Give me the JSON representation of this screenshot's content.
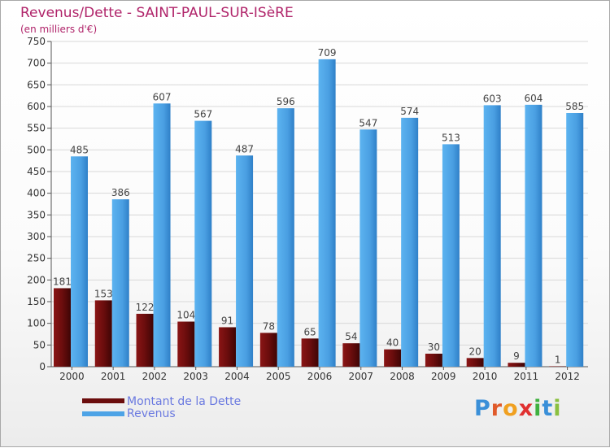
{
  "header": {
    "title": "Revenus/Dette - SAINT-PAUL-SUR-ISèRE",
    "subtitle": "(en milliers d'€)"
  },
  "colors": {
    "debt": "#6b0d0d",
    "revenue": "#4da3e6",
    "title": "#b0246a",
    "legend_text": "#6a79e0",
    "grid": "#d8d8d8",
    "axis": "#555555"
  },
  "chart_data": {
    "type": "bar",
    "title": "Revenus/Dette - SAINT-PAUL-SUR-ISèRE",
    "ylabel": "(en milliers d'€)",
    "xlabel": "",
    "categories": [
      "2000",
      "2001",
      "2002",
      "2003",
      "2004",
      "2005",
      "2006",
      "2007",
      "2008",
      "2009",
      "2010",
      "2011",
      "2012"
    ],
    "series": [
      {
        "name": "Montant de la Dette",
        "color": "#6b0d0d",
        "values": [
          181,
          153,
          122,
          104,
          91,
          78,
          65,
          54,
          40,
          30,
          20,
          9,
          1
        ]
      },
      {
        "name": "Revenus",
        "color": "#4da3e6",
        "values": [
          485,
          386,
          607,
          567,
          487,
          596,
          709,
          547,
          574,
          513,
          603,
          604,
          585
        ]
      }
    ],
    "ylim": [
      0,
      750
    ],
    "yticks": [
      0,
      50,
      100,
      150,
      200,
      250,
      300,
      350,
      400,
      450,
      500,
      550,
      600,
      650,
      700,
      750
    ],
    "grid": true,
    "legend": "bottom-left"
  },
  "legend": {
    "items": [
      {
        "label": "Montant de la Dette",
        "color": "#6b0d0d"
      },
      {
        "label": "Revenus",
        "color": "#4da3e6"
      }
    ]
  },
  "logo": {
    "letters": [
      "P",
      "r",
      "o",
      "x",
      "i",
      "t",
      "i"
    ],
    "colors": [
      "#3a8fd8",
      "#e05a2a",
      "#f0a020",
      "#e03030",
      "#40b040",
      "#3a8fd8",
      "#8ac040"
    ]
  }
}
